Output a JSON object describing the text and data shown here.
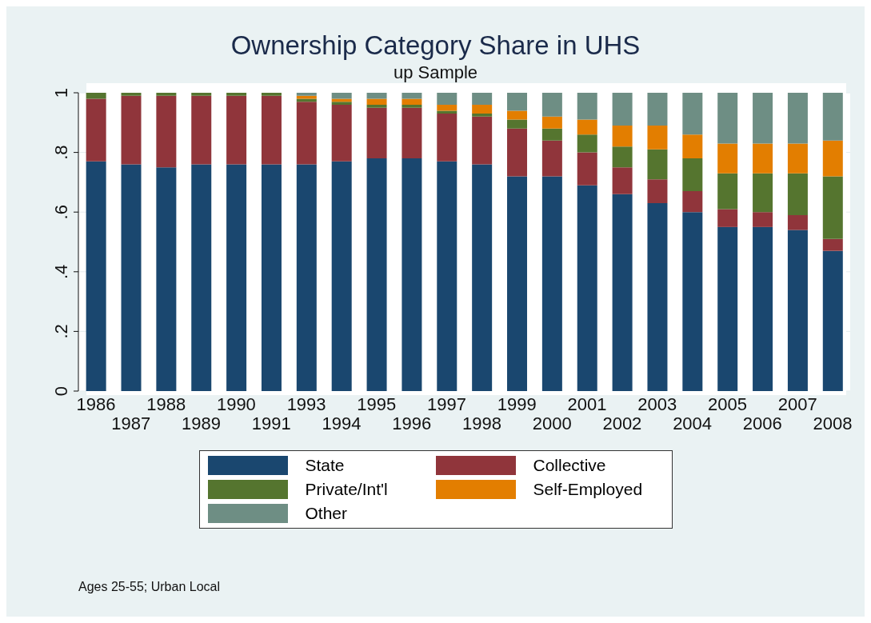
{
  "chart_data": {
    "type": "bar",
    "title": "Ownership Category Share in UHS",
    "subtitle": "up Sample",
    "categories": [
      "1986",
      "1987",
      "1988",
      "1989",
      "1990",
      "1991",
      "1993",
      "1994",
      "1995",
      "1996",
      "1997",
      "1998",
      "1999",
      "2000",
      "2001",
      "2002",
      "2003",
      "2004",
      "2005",
      "2006",
      "2007",
      "2008"
    ],
    "stacked": true,
    "series": [
      {
        "name": "State",
        "color": "#1a476f",
        "values": [
          0.77,
          0.76,
          0.75,
          0.76,
          0.76,
          0.76,
          0.76,
          0.77,
          0.78,
          0.78,
          0.77,
          0.76,
          0.72,
          0.72,
          0.69,
          0.66,
          0.63,
          0.6,
          0.55,
          0.55,
          0.54,
          0.47
        ]
      },
      {
        "name": "Collective",
        "color": "#90353b",
        "values": [
          0.21,
          0.23,
          0.24,
          0.23,
          0.23,
          0.23,
          0.21,
          0.19,
          0.17,
          0.17,
          0.16,
          0.16,
          0.16,
          0.12,
          0.11,
          0.09,
          0.08,
          0.07,
          0.06,
          0.05,
          0.05,
          0.04
        ]
      },
      {
        "name": "Private/Int'l",
        "color": "#55752f",
        "values": [
          0.02,
          0.01,
          0.01,
          0.01,
          0.01,
          0.01,
          0.01,
          0.01,
          0.01,
          0.01,
          0.01,
          0.01,
          0.03,
          0.04,
          0.06,
          0.07,
          0.1,
          0.11,
          0.12,
          0.13,
          0.14,
          0.21
        ]
      },
      {
        "name": "Self-Employed",
        "color": "#e37e00",
        "values": [
          0,
          0,
          0,
          0,
          0,
          0,
          0.01,
          0.01,
          0.02,
          0.02,
          0.02,
          0.03,
          0.03,
          0.04,
          0.05,
          0.07,
          0.08,
          0.08,
          0.1,
          0.1,
          0.1,
          0.12
        ]
      },
      {
        "name": "Other",
        "color": "#6e8e84",
        "values": [
          0,
          0,
          0,
          0,
          0,
          0,
          0.01,
          0.02,
          0.02,
          0.02,
          0.04,
          0.04,
          0.06,
          0.08,
          0.09,
          0.11,
          0.11,
          0.14,
          0.17,
          0.17,
          0.17,
          0.16
        ]
      }
    ],
    "ylim": [
      0,
      1
    ],
    "yticks": [
      0,
      {
        "value": 0.2,
        "label": ".2"
      },
      {
        "value": 0.4,
        "label": ".4"
      },
      {
        "value": 0.6,
        "label": ".6"
      },
      {
        "value": 0.8,
        "label": ".8"
      },
      1
    ],
    "grid": "y",
    "legend": "bottom",
    "annotations": [
      "Ages 25-55; Urban Local"
    ]
  }
}
